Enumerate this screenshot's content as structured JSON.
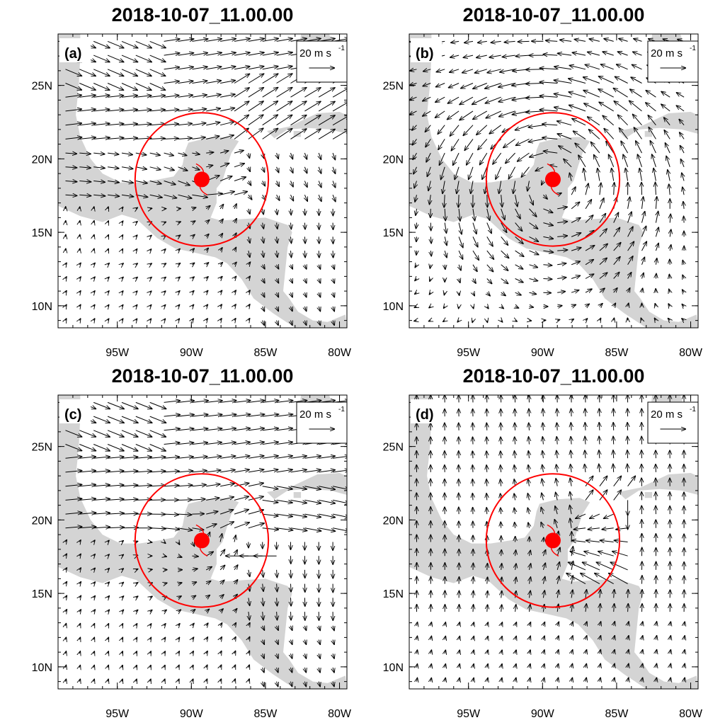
{
  "colors": {
    "land": "#d4d4d4",
    "ocean": "#ffffff",
    "vector": "#000000",
    "storm": "#ff0000",
    "frame": "#000000"
  },
  "chart_data": [
    {
      "type": "vector-field",
      "title": "2018-10-07_11.00.00",
      "panel_label": "(a)",
      "reference_vector": {
        "label": "20 m s",
        "exponent": "-1",
        "magnitude_ms": 20
      },
      "xlim": [
        -99,
        -79.5
      ],
      "ylim": [
        8.5,
        28.5
      ],
      "x_ticks": [
        "95W",
        "90W",
        "85W",
        "80W"
      ],
      "x_tick_values": [
        -95,
        -90,
        -85,
        -80
      ],
      "y_ticks": [
        "10N",
        "15N",
        "20N",
        "25N"
      ],
      "y_tick_values": [
        10,
        15,
        20,
        25
      ],
      "storm": {
        "lon": -89.3,
        "lat": 18.6,
        "radius_deg": 4.5
      },
      "wind_mode": "a"
    },
    {
      "type": "vector-field",
      "title": "2018-10-07_11.00.00",
      "panel_label": "(b)",
      "reference_vector": {
        "label": "20 m s",
        "exponent": "-1",
        "magnitude_ms": 20
      },
      "xlim": [
        -99,
        -79.5
      ],
      "ylim": [
        8.5,
        28.5
      ],
      "x_ticks": [
        "95W",
        "90W",
        "85W",
        "80W"
      ],
      "x_tick_values": [
        -95,
        -90,
        -85,
        -80
      ],
      "y_ticks": [
        "10N",
        "15N",
        "20N",
        "25N"
      ],
      "y_tick_values": [
        10,
        15,
        20,
        25
      ],
      "storm": {
        "lon": -89.3,
        "lat": 18.6,
        "radius_deg": 4.5
      },
      "wind_mode": "b"
    },
    {
      "type": "vector-field",
      "title": "2018-10-07_11.00.00",
      "panel_label": "(c)",
      "reference_vector": {
        "label": "20 m s",
        "exponent": "-1",
        "magnitude_ms": 20
      },
      "xlim": [
        -99,
        -79.5
      ],
      "ylim": [
        8.5,
        28.5
      ],
      "x_ticks": [
        "95W",
        "90W",
        "85W",
        "80W"
      ],
      "x_tick_values": [
        -95,
        -90,
        -85,
        -80
      ],
      "y_ticks": [
        "10N",
        "15N",
        "20N",
        "25N"
      ],
      "y_tick_values": [
        10,
        15,
        20,
        25
      ],
      "storm": {
        "lon": -89.3,
        "lat": 18.6,
        "radius_deg": 4.5
      },
      "wind_mode": "c"
    },
    {
      "type": "vector-field",
      "title": "2018-10-07_11.00.00",
      "panel_label": "(d)",
      "reference_vector": {
        "label": "20 m s",
        "exponent": "-1",
        "magnitude_ms": 20
      },
      "xlim": [
        -99,
        -79.5
      ],
      "ylim": [
        8.5,
        28.5
      ],
      "x_ticks": [
        "95W",
        "90W",
        "85W",
        "80W"
      ],
      "x_tick_values": [
        -95,
        -90,
        -85,
        -80
      ],
      "y_ticks": [
        "10N",
        "15N",
        "20N",
        "25N"
      ],
      "y_tick_values": [
        10,
        15,
        20,
        25
      ],
      "storm": {
        "lon": -89.3,
        "lat": 18.6,
        "radius_deg": 4.5
      },
      "wind_mode": "d"
    }
  ],
  "land": [
    {
      "name": "mexico-central-america",
      "lonlat": [
        [
          -99,
          28.5
        ],
        [
          -97.5,
          28.5
        ],
        [
          -97.5,
          27
        ],
        [
          -97.6,
          25
        ],
        [
          -97.8,
          23
        ],
        [
          -97.5,
          21.5
        ],
        [
          -96.8,
          20
        ],
        [
          -96,
          19
        ],
        [
          -94.8,
          18.4
        ],
        [
          -93.5,
          18.4
        ],
        [
          -92.2,
          18.6
        ],
        [
          -91.2,
          18.8
        ],
        [
          -90.6,
          19.6
        ],
        [
          -90.4,
          20.6
        ],
        [
          -90.2,
          21.1
        ],
        [
          -89,
          21.4
        ],
        [
          -87.5,
          21.5
        ],
        [
          -86.8,
          21.2
        ],
        [
          -87.3,
          20.4
        ],
        [
          -87.6,
          19.5
        ],
        [
          -87.9,
          18.5
        ],
        [
          -88.3,
          18
        ],
        [
          -88.3,
          17
        ],
        [
          -88.7,
          16
        ],
        [
          -88,
          15.8
        ],
        [
          -86.5,
          15.9
        ],
        [
          -85,
          16
        ],
        [
          -83.5,
          15.5
        ],
        [
          -83.2,
          15
        ],
        [
          -83.5,
          14
        ],
        [
          -83.6,
          13
        ],
        [
          -83.7,
          12
        ],
        [
          -83.8,
          11
        ],
        [
          -83.4,
          10.5
        ],
        [
          -82.8,
          9.6
        ],
        [
          -81.8,
          9
        ],
        [
          -80.8,
          8.9
        ],
        [
          -79.6,
          9.4
        ],
        [
          -79.5,
          8.5
        ],
        [
          -83,
          8.5
        ],
        [
          -84.5,
          9.5
        ],
        [
          -85.8,
          10.5
        ],
        [
          -86.6,
          11.8
        ],
        [
          -87.6,
          12.9
        ],
        [
          -88.4,
          13.3
        ],
        [
          -89.7,
          13.6
        ],
        [
          -91.1,
          13.9
        ],
        [
          -92.3,
          14.6
        ],
        [
          -93.7,
          15.9
        ],
        [
          -94.7,
          16.2
        ],
        [
          -96,
          15.7
        ],
        [
          -97.5,
          16.1
        ],
        [
          -99,
          16.8
        ]
      ]
    },
    {
      "name": "florida",
      "lonlat": [
        [
          -82.6,
          28.5
        ],
        [
          -82.7,
          27.5
        ],
        [
          -81.8,
          26
        ],
        [
          -81,
          25.2
        ],
        [
          -80.3,
          25.3
        ],
        [
          -80,
          26.3
        ],
        [
          -80.4,
          27.6
        ],
        [
          -80.7,
          28.5
        ]
      ]
    },
    {
      "name": "cuba",
      "lonlat": [
        [
          -84.9,
          21.9
        ],
        [
          -83.4,
          22.2
        ],
        [
          -81.5,
          23.1
        ],
        [
          -80,
          23.2
        ],
        [
          -78.2,
          22.4
        ],
        [
          -79.1,
          21.6
        ],
        [
          -80.6,
          22
        ],
        [
          -82.1,
          22.1
        ],
        [
          -83.5,
          22
        ],
        [
          -84.4,
          21.4
        ]
      ]
    },
    {
      "name": "isla-juventud",
      "lonlat": [
        [
          -83.1,
          21.9
        ],
        [
          -82.6,
          21.9
        ],
        [
          -82.6,
          21.5
        ],
        [
          -83.1,
          21.5
        ]
      ]
    },
    {
      "name": "jamaica",
      "lonlat": [
        [
          -78.3,
          18.4
        ],
        [
          -77.5,
          18.5
        ],
        [
          -76.3,
          18.2
        ],
        [
          -76.8,
          17.9
        ],
        [
          -78.2,
          18.2
        ]
      ]
    },
    {
      "name": "bahamas",
      "lonlat": [
        [
          -79.3,
          26.8
        ],
        [
          -78.3,
          26.7
        ],
        [
          -77.4,
          26.3
        ],
        [
          -77.2,
          25.2
        ],
        [
          -77.8,
          24.5
        ],
        [
          -78.4,
          25.3
        ],
        [
          -79.2,
          26.3
        ]
      ]
    }
  ]
}
